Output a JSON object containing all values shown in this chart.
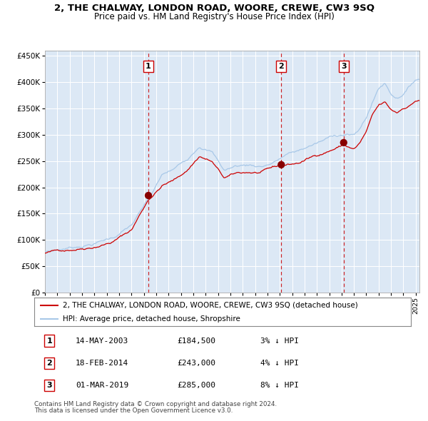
{
  "title1": "2, THE CHALWAY, LONDON ROAD, WOORE, CREWE, CW3 9SQ",
  "title2": "Price paid vs. HM Land Registry's House Price Index (HPI)",
  "legend_line1": "2, THE CHALWAY, LONDON ROAD, WOORE, CREWE, CW3 9SQ (detached house)",
  "legend_line2": "HPI: Average price, detached house, Shropshire",
  "sale1_date": "14-MAY-2003",
  "sale1_price": "£184,500",
  "sale1_pct": "3% ↓ HPI",
  "sale1_year": 2003.37,
  "sale1_value": 184500,
  "sale2_date": "18-FEB-2014",
  "sale2_price": "£243,000",
  "sale2_pct": "4% ↓ HPI",
  "sale2_year": 2014.12,
  "sale2_value": 243000,
  "sale3_date": "01-MAR-2019",
  "sale3_price": "£285,000",
  "sale3_pct": "8% ↓ HPI",
  "sale3_year": 2019.17,
  "sale3_value": 285000,
  "hpi_color": "#a8c8e8",
  "price_color": "#cc0000",
  "dot_color": "#880000",
  "vline_color": "#cc0000",
  "bg_color": "#dce8f5",
  "grid_color": "#ffffff",
  "footnote1": "Contains HM Land Registry data © Crown copyright and database right 2024.",
  "footnote2": "This data is licensed under the Open Government Licence v3.0.",
  "ylim_min": 0,
  "ylim_max": 460000,
  "xmin": 1995.0,
  "xmax": 2025.3
}
